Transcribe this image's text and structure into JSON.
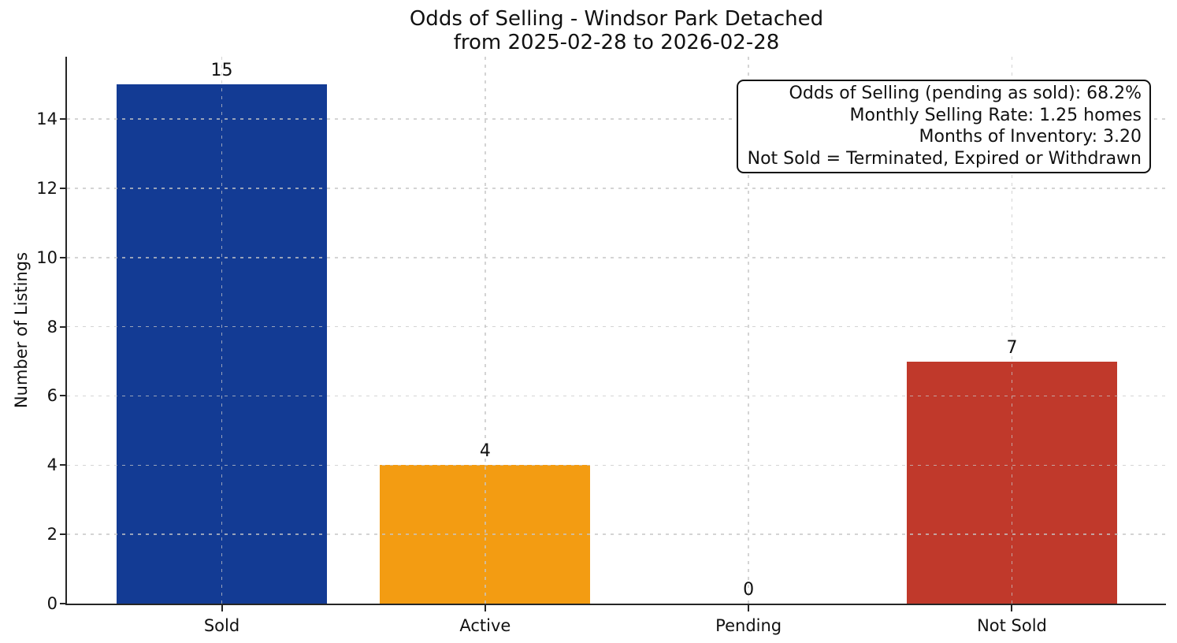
{
  "title": {
    "line1": "Odds of Selling - Windsor Park Detached",
    "line2": "from 2025-02-28 to 2026-02-28"
  },
  "annotation_box": {
    "lines": [
      "Odds of Selling (pending as sold): 68.2%",
      "Monthly Selling Rate: 1.25 homes",
      "Months of Inventory: 3.20",
      "Not Sold = Terminated, Expired or Withdrawn"
    ]
  },
  "chart_data": {
    "type": "bar",
    "title": "Odds of Selling - Windsor Park Detached\nfrom 2025-02-28 to 2026-02-28",
    "categories": [
      "Sold",
      "Active",
      "Pending",
      "Not Sold"
    ],
    "values": [
      15,
      4,
      0,
      7
    ],
    "value_labels": [
      "15",
      "4",
      "0",
      "7"
    ],
    "bar_colors": [
      "#133b94",
      "#f39c12",
      null,
      "#c0392b"
    ],
    "xlabel": "",
    "ylabel": "Number of Listings",
    "yticks": [
      0,
      2,
      4,
      6,
      8,
      10,
      12,
      14
    ],
    "ylim": [
      0,
      15.8
    ],
    "grid": "dashed light-gray gridlines on both axes, drawn over bars",
    "legend": "none",
    "annotations": [
      "Odds of Selling (pending as sold): 68.2%",
      "Monthly Selling Rate: 1.25 homes",
      "Months of Inventory: 3.20",
      "Not Sold = Terminated, Expired or Withdrawn"
    ]
  },
  "colors": {
    "axis": "#262626",
    "grid": "#c6c6c6",
    "text": "#111111",
    "background": "#ffffff",
    "sold_bar": "#133b94",
    "active_bar": "#f39c12",
    "not_sold_bar": "#c0392b"
  }
}
